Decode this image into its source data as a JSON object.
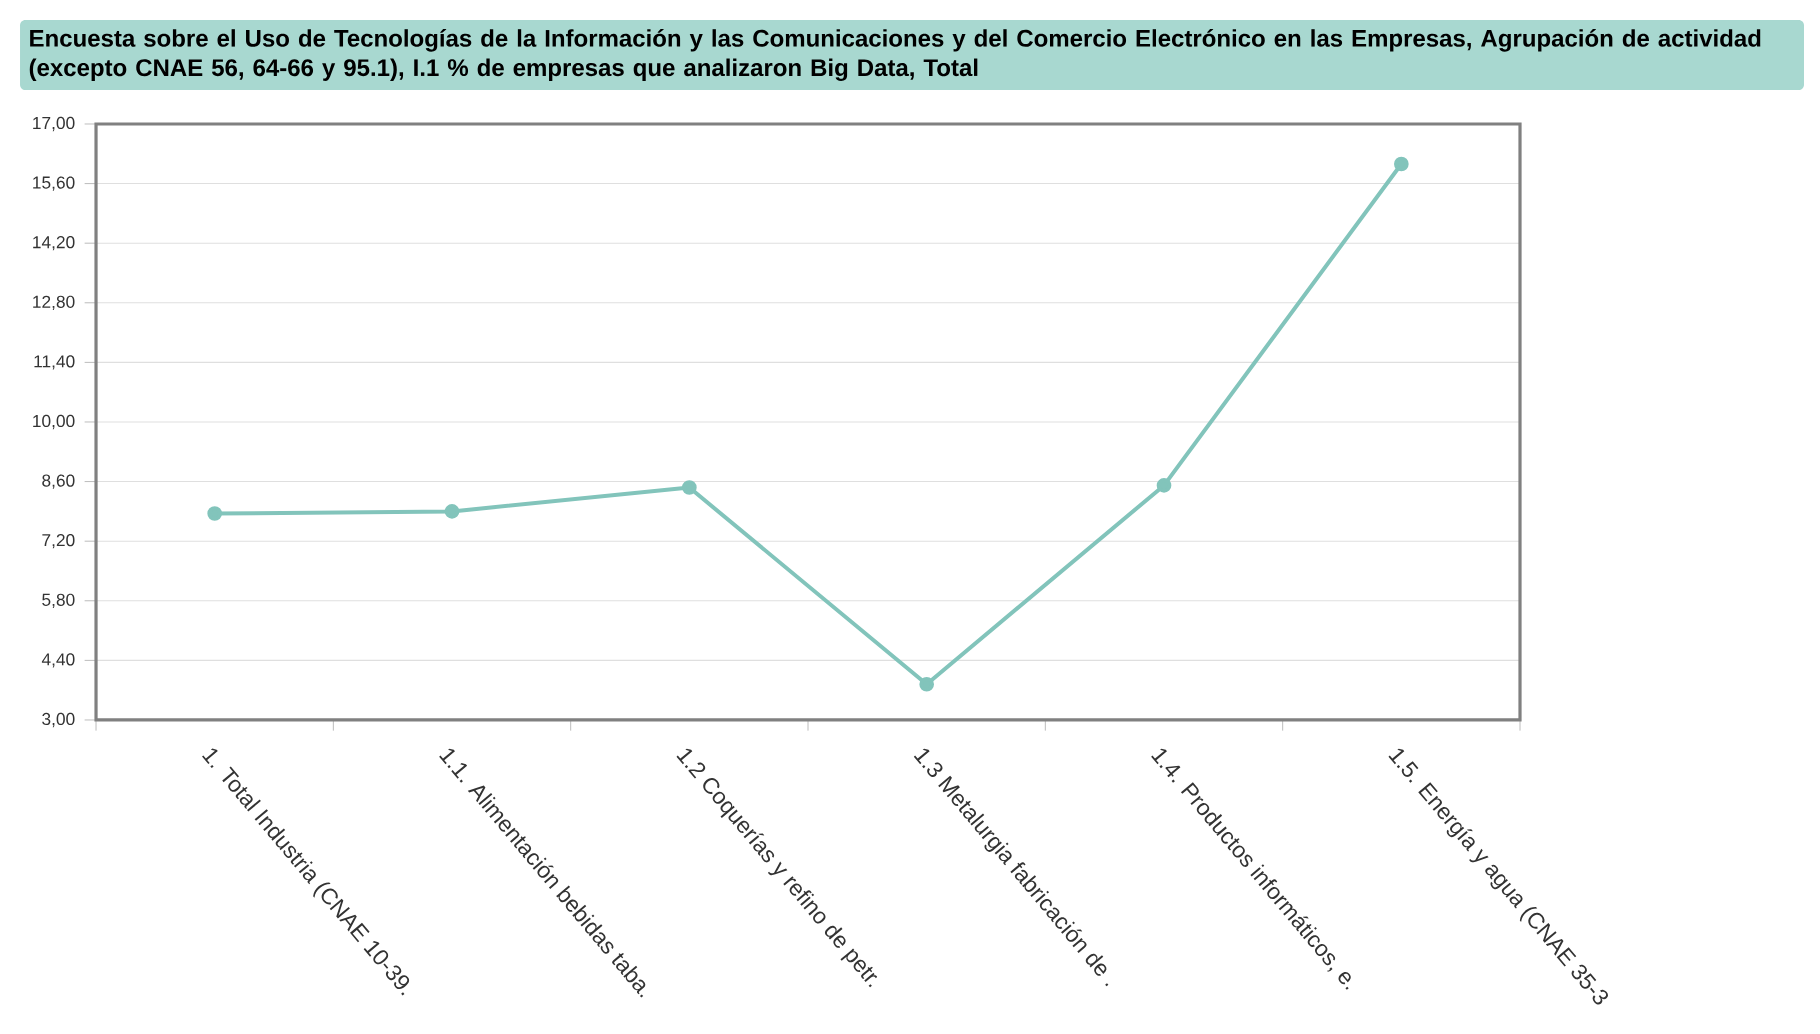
{
  "chart_data": {
    "type": "line",
    "title": "Encuesta sobre el Uso de Tecnologías de la Información y las Comunicaciones y del Comercio Electrónico en las Empresas, Agrupación de actividad (excepto CNAE 56, 64-66 y 95.1), I.1 % de empresas que analizaron Big Data, Total",
    "categories": [
      "1. Total Industria (CNAE 10-39.",
      "1.1. Alimentación bebidas taba.",
      "1.2 Coquerías y refino de petr.",
      "1.3 Metalurgia fabricación de .",
      "1.4. Productos informáticos, e.",
      "1.5. Energía y agua (CNAE 35-3"
    ],
    "series": [
      {
        "color": "#82c4bb",
        "values": [
          7.85,
          7.9,
          8.46,
          3.84,
          8.51,
          16.06
        ]
      }
    ],
    "ylim": [
      3,
      17
    ],
    "yticks": [
      {
        "value": 3,
        "label": "3,00"
      },
      {
        "value": 4.4,
        "label": "4,40"
      },
      {
        "value": 5.8,
        "label": "5,80"
      },
      {
        "value": 7.2,
        "label": "7,20"
      },
      {
        "value": 8.6,
        "label": "8,60"
      },
      {
        "value": 10,
        "label": "10,00"
      },
      {
        "value": 11.4,
        "label": "11,40"
      },
      {
        "value": 12.8,
        "label": "12,80"
      },
      {
        "value": 14.2,
        "label": "14,20"
      },
      {
        "value": 15.6,
        "label": "15,60"
      },
      {
        "value": 17,
        "label": "17,00"
      }
    ],
    "grid": "y",
    "marker": "circle",
    "line_style": "solid"
  }
}
